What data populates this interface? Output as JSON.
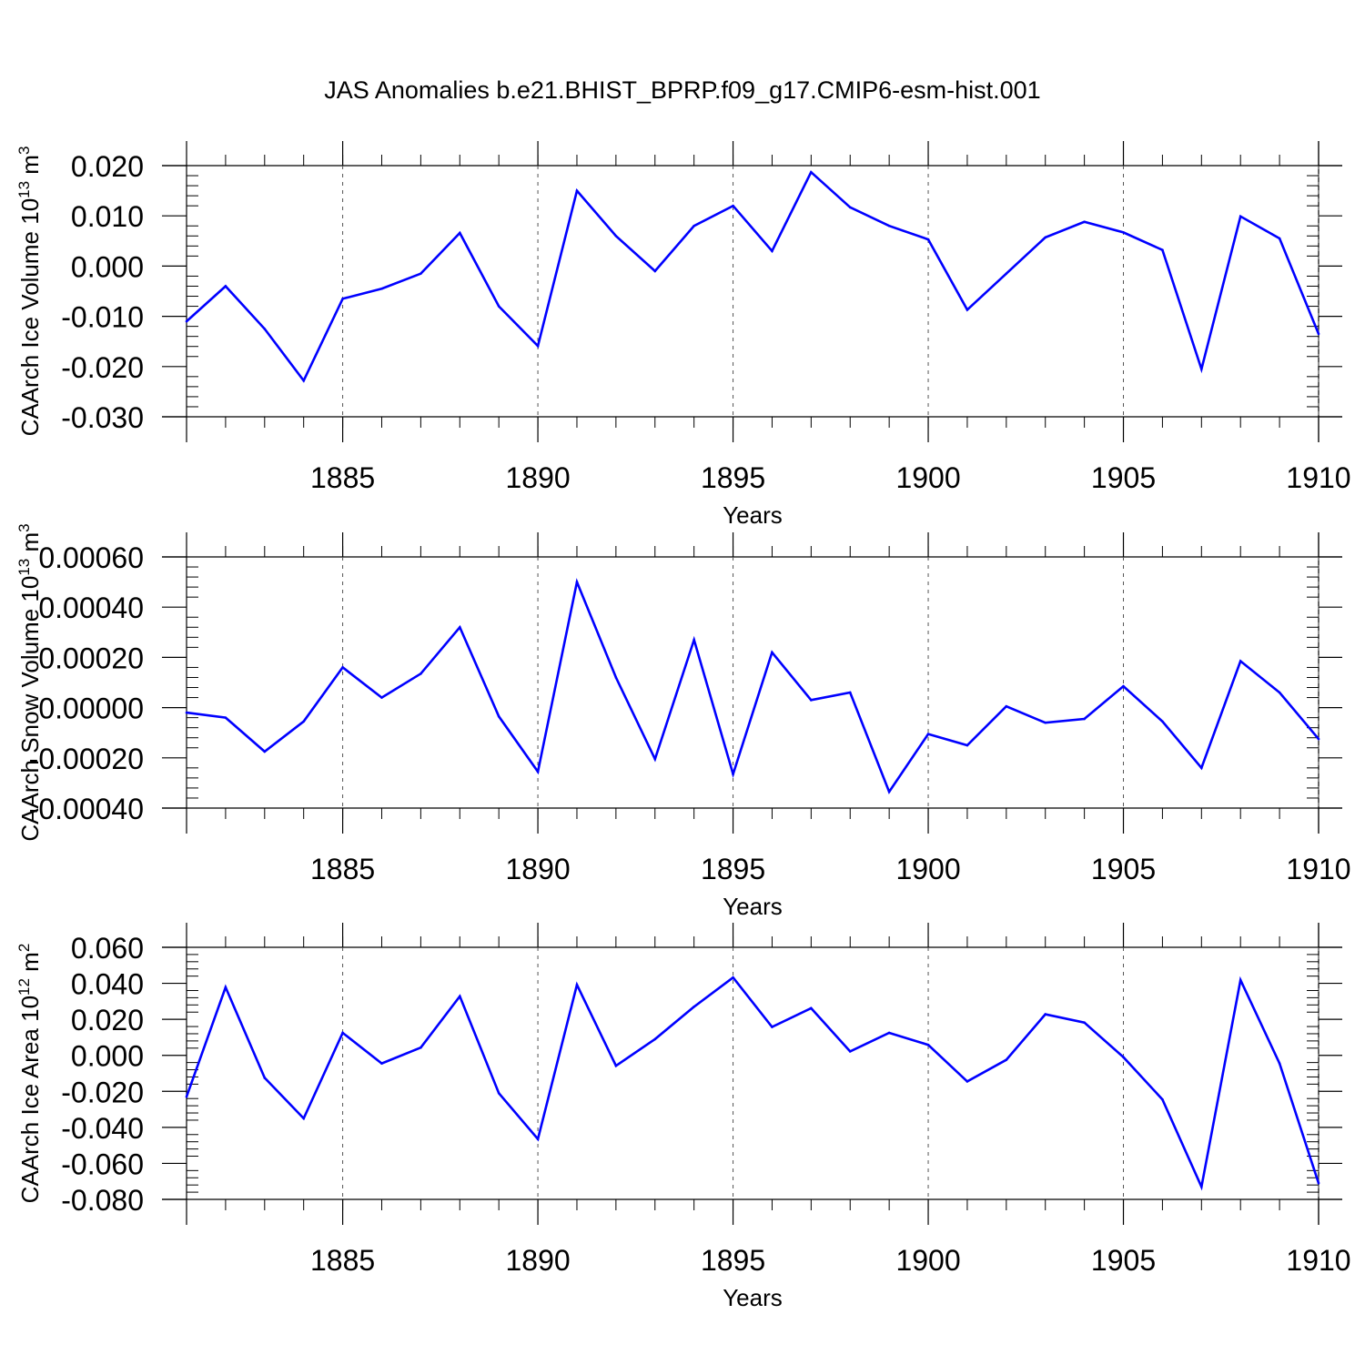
{
  "title": "JAS Anomalies b.e21.BHIST_BPRP.f09_g17.CMIP6-esm-hist.001",
  "chart_data": [
    {
      "type": "line",
      "title": "",
      "xlabel": "Years",
      "ylabel": "CAArch Ice Volume 10",
      "ylabel_exp": "13",
      "ylabel_unit": " m",
      "ylabel_unit_exp": "3",
      "xlim": [
        1881,
        1910
      ],
      "ylim": [
        -0.03,
        0.02
      ],
      "yticks": [
        -0.03,
        -0.02,
        -0.01,
        0.0,
        0.01,
        0.02
      ],
      "ytick_labels": [
        "-0.030",
        "-0.020",
        "-0.010",
        "0.000",
        "0.010",
        "0.020"
      ],
      "xticks": [
        1885,
        1890,
        1895,
        1900,
        1905,
        1910
      ],
      "xtick_labels": [
        "1885",
        "1890",
        "1895",
        "1900",
        "1905",
        "1910"
      ],
      "grid": "dashed vertical lines at major x ticks",
      "line_color": "#0000ff",
      "x": [
        1881,
        1882,
        1883,
        1884,
        1885,
        1886,
        1887,
        1888,
        1889,
        1890,
        1891,
        1892,
        1893,
        1894,
        1895,
        1896,
        1897,
        1898,
        1899,
        1900,
        1901,
        1902,
        1903,
        1904,
        1905,
        1906,
        1907,
        1908,
        1909,
        1910
      ],
      "values": [
        -0.011,
        -0.004,
        -0.0125,
        -0.0228,
        -0.0065,
        -0.0045,
        -0.0015,
        0.0066,
        -0.008,
        -0.0159,
        0.015,
        0.006,
        -0.001,
        0.008,
        0.012,
        0.003,
        0.0187,
        0.0117,
        0.008,
        0.0053,
        -0.0087,
        -0.0015,
        0.0057,
        0.0088,
        0.0067,
        0.0032,
        -0.0205,
        0.0099,
        0.0055,
        -0.0135
      ]
    },
    {
      "type": "line",
      "title": "",
      "xlabel": "Years",
      "ylabel": "CAArch Snow Volume 10",
      "ylabel_exp": "13",
      "ylabel_unit": " m",
      "ylabel_unit_exp": "3",
      "xlim": [
        1881,
        1910
      ],
      "ylim": [
        -0.0004,
        0.0006
      ],
      "yticks": [
        -0.0004,
        -0.0002,
        0.0,
        0.0002,
        0.0004,
        0.0006
      ],
      "ytick_labels": [
        "-0.00040",
        "-0.00020",
        "0.00000",
        "0.00020",
        "0.00040",
        "0.00060"
      ],
      "xticks": [
        1885,
        1890,
        1895,
        1900,
        1905,
        1910
      ],
      "xtick_labels": [
        "1885",
        "1890",
        "1895",
        "1900",
        "1905",
        "1910"
      ],
      "grid": "dashed vertical lines at major x ticks",
      "line_color": "#0000ff",
      "x": [
        1881,
        1882,
        1883,
        1884,
        1885,
        1886,
        1887,
        1888,
        1889,
        1890,
        1891,
        1892,
        1893,
        1894,
        1895,
        1896,
        1897,
        1898,
        1899,
        1900,
        1901,
        1902,
        1903,
        1904,
        1905,
        1906,
        1907,
        1908,
        1909,
        1910
      ],
      "values": [
        -2e-05,
        -4e-05,
        -0.000175,
        -5.5e-05,
        0.00016,
        4e-05,
        0.000135,
        0.00032,
        -3.5e-05,
        -0.000255,
        0.0005,
        0.00012,
        -0.000205,
        0.00027,
        -0.000265,
        0.00022,
        3e-05,
        6e-05,
        -0.000335,
        -0.000105,
        -0.00015,
        5e-06,
        -6e-05,
        -4.5e-05,
        8.5e-05,
        -5.5e-05,
        -0.00024,
        0.000185,
        6e-05,
        -0.000125
      ]
    },
    {
      "type": "line",
      "title": "",
      "xlabel": "Years",
      "ylabel": "CAArch Ice Area 10",
      "ylabel_exp": "12",
      "ylabel_unit": " m",
      "ylabel_unit_exp": "2",
      "xlim": [
        1881,
        1910
      ],
      "ylim": [
        -0.08,
        0.06
      ],
      "yticks": [
        -0.08,
        -0.06,
        -0.04,
        -0.02,
        0.0,
        0.02,
        0.04,
        0.06
      ],
      "ytick_labels": [
        "-0.080",
        "-0.060",
        "-0.040",
        "-0.020",
        "0.000",
        "0.020",
        "0.040",
        "0.060"
      ],
      "xticks": [
        1885,
        1890,
        1895,
        1900,
        1905,
        1910
      ],
      "xtick_labels": [
        "1885",
        "1890",
        "1895",
        "1900",
        "1905",
        "1910"
      ],
      "grid": "dashed vertical lines at major x ticks",
      "line_color": "#0000ff",
      "x": [
        1881,
        1882,
        1883,
        1884,
        1885,
        1886,
        1887,
        1888,
        1889,
        1890,
        1891,
        1892,
        1893,
        1894,
        1895,
        1896,
        1897,
        1898,
        1899,
        1900,
        1901,
        1902,
        1903,
        1904,
        1905,
        1906,
        1907,
        1908,
        1909,
        1910
      ],
      "values": [
        -0.023,
        0.0378,
        -0.0125,
        -0.035,
        0.0125,
        -0.0045,
        0.0043,
        0.0328,
        -0.021,
        -0.0465,
        0.0392,
        -0.0058,
        0.009,
        0.027,
        0.0432,
        0.0158,
        0.0262,
        0.0022,
        0.0125,
        0.0058,
        -0.0145,
        -0.0025,
        0.0228,
        0.0182,
        -0.001,
        -0.0245,
        -0.073,
        0.0418,
        -0.0045,
        -0.071
      ]
    }
  ]
}
